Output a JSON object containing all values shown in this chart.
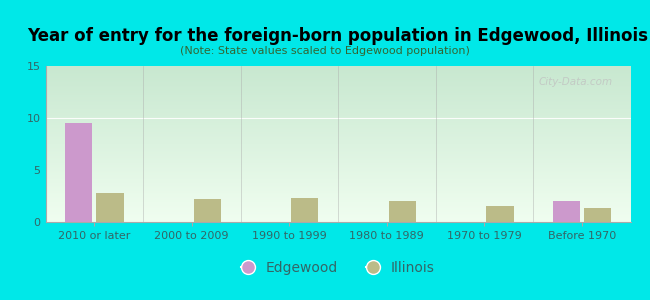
{
  "title": "Year of entry for the foreign-born population in Edgewood, Illinois",
  "subtitle": "(Note: State values scaled to Edgewood population)",
  "categories": [
    "2010 or later",
    "2000 to 2009",
    "1990 to 1999",
    "1980 to 1989",
    "1970 to 1979",
    "Before 1970"
  ],
  "edgewood_values": [
    9.5,
    0,
    0,
    0,
    0,
    2.0
  ],
  "illinois_values": [
    2.8,
    2.2,
    2.3,
    2.0,
    1.5,
    1.3
  ],
  "edgewood_color": "#cc99cc",
  "illinois_color": "#bbbb88",
  "ylim": [
    0,
    15
  ],
  "yticks": [
    0,
    5,
    10,
    15
  ],
  "background_color": "#00e8e8",
  "plot_bg_top": "#c8e8d0",
  "plot_bg_bottom": "#f0fef0",
  "bar_width": 0.28,
  "watermark": "City-Data.com",
  "legend_edgewood": "Edgewood",
  "legend_illinois": "Illinois",
  "title_fontsize": 12,
  "subtitle_fontsize": 8,
  "tick_fontsize": 8,
  "ytick_fontsize": 8
}
